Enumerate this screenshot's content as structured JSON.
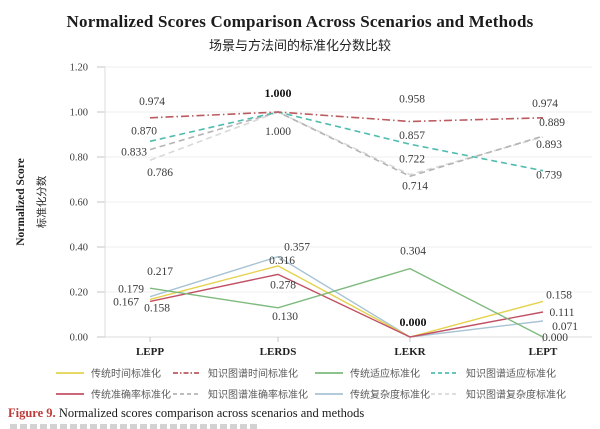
{
  "figure": {
    "caption_label": "Figure 9.",
    "caption_text": " Normalized scores comparison across scenarios and methods"
  },
  "chart_data": {
    "type": "line",
    "title": "Normalized Scores Comparison Across Scenarios and Methods",
    "subtitle": "场景与方法间的标准化分数比较",
    "ylabel": "Normalized Score",
    "ylabel_secondary": "标准化分数",
    "xlabel": "",
    "categories": [
      "LEPP",
      "LERDS",
      "LEKR",
      "LEPT"
    ],
    "yticks": [
      "0.00",
      "0.20",
      "0.40",
      "0.60",
      "0.80",
      "1.00",
      "1.20"
    ],
    "ylim": [
      0.0,
      1.2
    ],
    "grid": true,
    "legend_position": "bottom",
    "series": [
      {
        "name": "传统时间标准化",
        "key": "trad-time",
        "color": "#e5d24e",
        "style": "solid",
        "values": [
          0.167,
          0.316,
          0.0,
          0.158
        ]
      },
      {
        "name": "知识图谱时间标准化",
        "key": "kg-time",
        "color": "#bb5a5f",
        "style": "dashdot",
        "values": [
          0.974,
          1.0,
          0.958,
          0.974
        ]
      },
      {
        "name": "传统适应标准化",
        "key": "trad-adapt",
        "color": "#7dba7d",
        "style": "solid",
        "values": [
          0.217,
          0.13,
          0.304,
          0.0
        ]
      },
      {
        "name": "知识图谱适应标准化",
        "key": "kg-adapt",
        "color": "#50bcae",
        "style": "dashed",
        "values": [
          0.87,
          1.0,
          0.857,
          0.739
        ]
      },
      {
        "name": "传统准确率标准化",
        "key": "trad-acc",
        "color": "#c25065",
        "style": "solid",
        "values": [
          0.158,
          0.278,
          0.0,
          0.111
        ]
      },
      {
        "name": "知识图谱准确率标准化",
        "key": "kg-acc",
        "color": "#b4b4b4",
        "style": "dashed",
        "values": [
          0.833,
          1.0,
          0.714,
          0.893
        ]
      },
      {
        "name": "传统复杂度标准化",
        "key": "trad-cplx",
        "color": "#a8c3d4",
        "style": "solid",
        "values": [
          0.179,
          0.357,
          0.0,
          0.071
        ]
      },
      {
        "name": "知识图谱复杂度标准化",
        "key": "kg-cplx",
        "color": "#d9d9d9",
        "style": "dashed",
        "values": [
          0.786,
          1.0,
          0.722,
          0.889
        ]
      }
    ],
    "emphasized_labels": [
      {
        "category": "LERDS",
        "value": 1.0
      },
      {
        "category": "LEKR",
        "value": 0.0
      }
    ]
  }
}
